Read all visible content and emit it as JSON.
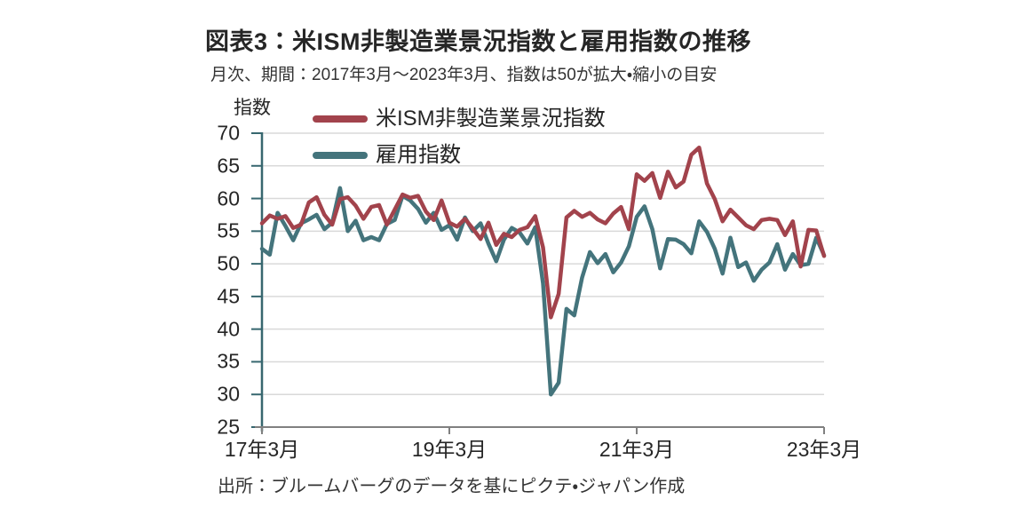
{
  "header": {
    "title": "図表3：米ISM非製造業景況指数と雇用指数の推移",
    "subtitle": "月次、期間：2017年3月～2023年3月、指数は50が拡大・縮小の目安"
  },
  "source": "出所：ブルームバーグのデータを基にピクテ・ジャパン作成",
  "colors": {
    "ism_line": "#a2434c",
    "employment_line": "#44747c",
    "gridline": "#d9d9d9",
    "y_axis": "#37676f",
    "x_axis": "#808080",
    "text": "#262626"
  },
  "chart_data": {
    "type": "line",
    "title": "図表3：米ISM非製造業景況指数と雇用指数の推移",
    "subtitle": "月次、期間：2017年3月～2023年3月、指数は50が拡大・縮小の目安",
    "ylabel": "指数",
    "xlabel": "",
    "ylim": [
      25,
      70
    ],
    "y_ticks": [
      70,
      65,
      60,
      55,
      50,
      45,
      40,
      35,
      30,
      25
    ],
    "x_tick_labels": [
      "17年3月",
      "19年3月",
      "21年3月",
      "23年3月"
    ],
    "x_tick_month_index": [
      0,
      24,
      48,
      72
    ],
    "x_range_months": 72,
    "x_start": "2017-03",
    "x_end": "2023-03",
    "grid": "horizontal-only",
    "legend_position": "top-left",
    "series": [
      {
        "name": "米ISM非製造業景況指数",
        "color": "#a2434c",
        "values": [
          56.2,
          57.4,
          56.9,
          57.3,
          55.5,
          56.0,
          59.4,
          60.2,
          57.5,
          56.0,
          59.9,
          60.2,
          58.9,
          56.9,
          58.7,
          59.0,
          56.0,
          58.3,
          60.6,
          60.1,
          60.4,
          58.0,
          56.7,
          59.7,
          56.3,
          55.7,
          56.9,
          55.4,
          53.8,
          56.3,
          52.9,
          54.6,
          54.1,
          55.2,
          55.6,
          57.3,
          52.5,
          41.8,
          45.4,
          57.1,
          58.1,
          57.2,
          57.8,
          56.8,
          56.2,
          57.7,
          58.7,
          55.3,
          63.7,
          62.7,
          63.9,
          60.1,
          64.1,
          61.7,
          62.6,
          66.7,
          67.8,
          62.3,
          59.9,
          56.5,
          58.3,
          57.1,
          55.9,
          55.3,
          56.7,
          56.9,
          56.7,
          54.4,
          56.5,
          49.6,
          55.2,
          55.1,
          51.2
        ]
      },
      {
        "name": "雇用指数",
        "color": "#44747c",
        "values": [
          52.3,
          51.4,
          57.8,
          55.8,
          53.6,
          56.2,
          56.8,
          57.5,
          55.3,
          56.3,
          61.6,
          55.0,
          56.6,
          53.6,
          54.1,
          53.6,
          56.1,
          56.7,
          60.4,
          59.7,
          58.4,
          56.3,
          57.8,
          55.2,
          55.9,
          53.7,
          57.1,
          55.0,
          56.2,
          53.1,
          50.4,
          53.7,
          55.5,
          54.8,
          53.1,
          55.6,
          47.0,
          30.0,
          31.8,
          43.1,
          42.1,
          47.9,
          51.8,
          50.1,
          51.5,
          48.7,
          50.2,
          52.7,
          57.2,
          58.8,
          55.3,
          49.3,
          53.8,
          53.7,
          53.0,
          51.6,
          56.5,
          54.9,
          52.3,
          48.5,
          54.0,
          49.5,
          50.2,
          47.4,
          49.1,
          50.2,
          53.0,
          49.1,
          51.5,
          49.8,
          50.0,
          54.0,
          51.3
        ]
      }
    ]
  }
}
